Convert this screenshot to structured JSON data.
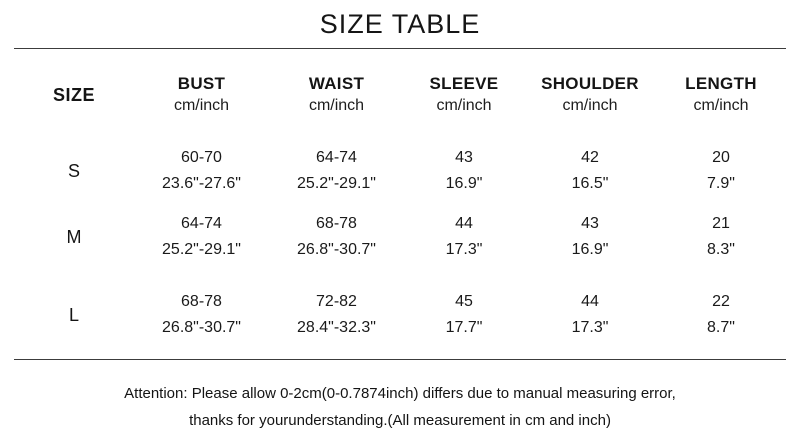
{
  "title": "SIZE TABLE",
  "table": {
    "size_header": "SIZE",
    "columns": [
      {
        "label": "BUST",
        "unit": "cm/inch"
      },
      {
        "label": "WAIST",
        "unit": "cm/inch"
      },
      {
        "label": "SLEEVE",
        "unit": "cm/inch"
      },
      {
        "label": "SHOULDER",
        "unit": "cm/inch"
      },
      {
        "label": "LENGTH",
        "unit": "cm/inch"
      }
    ],
    "rows": [
      {
        "size": "S",
        "cells": [
          {
            "cm": "60-70",
            "inch": "23.6\"-27.6\""
          },
          {
            "cm": "64-74",
            "inch": "25.2\"-29.1\""
          },
          {
            "cm": "43",
            "inch": "16.9\""
          },
          {
            "cm": "42",
            "inch": "16.5\""
          },
          {
            "cm": "20",
            "inch": "7.9\""
          }
        ]
      },
      {
        "size": "M",
        "cells": [
          {
            "cm": "64-74",
            "inch": "25.2\"-29.1\""
          },
          {
            "cm": "68-78",
            "inch": "26.8\"-30.7\""
          },
          {
            "cm": "44",
            "inch": "17.3\""
          },
          {
            "cm": "43",
            "inch": "16.9\""
          },
          {
            "cm": "21",
            "inch": "8.3\""
          }
        ]
      },
      {
        "size": "L",
        "cells": [
          {
            "cm": "68-78",
            "inch": "26.8\"-30.7\""
          },
          {
            "cm": "72-82",
            "inch": "28.4\"-32.3\""
          },
          {
            "cm": "45",
            "inch": "17.7\""
          },
          {
            "cm": "44",
            "inch": "17.3\""
          },
          {
            "cm": "22",
            "inch": "8.7\""
          }
        ]
      }
    ]
  },
  "footer": {
    "line1": "Attention: Please allow 0-2cm(0-0.7874inch) differs due to manual measuring error,",
    "line2": "thanks for yourunderstanding.(All measurement in cm and inch)"
  }
}
